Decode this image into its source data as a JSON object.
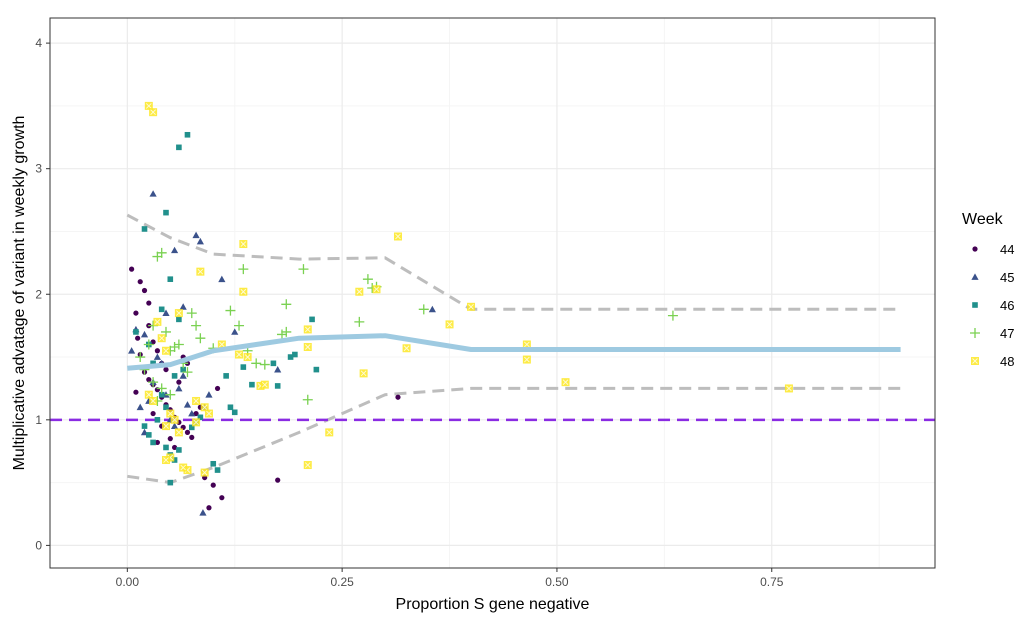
{
  "chart_data": {
    "type": "scatter",
    "title": "",
    "xlabel": "Proportion S gene negative",
    "ylabel": "Multiplicative advatage of variant in weekly growth",
    "xlim": [
      -0.09,
      0.94
    ],
    "ylim": [
      -0.18,
      4.2
    ],
    "x_ticks": [
      0.0,
      0.25,
      0.5,
      0.75
    ],
    "x_tick_labels": [
      "0.00",
      "0.25",
      "0.50",
      "0.75"
    ],
    "y_ticks": [
      0,
      1,
      2,
      3,
      4
    ],
    "y_tick_labels": [
      "0",
      "1",
      "2",
      "3",
      "4"
    ],
    "grid": true,
    "legend": {
      "title": "Week",
      "position": "right"
    },
    "reference_line": {
      "y": 1,
      "color": "#8a2be2",
      "style": "dashed"
    },
    "fit_line": {
      "color": "#9ecae1",
      "x": [
        0.0,
        0.05,
        0.1,
        0.2,
        0.3,
        0.4,
        0.5,
        0.6,
        0.7,
        0.8,
        0.9
      ],
      "y": [
        1.41,
        1.44,
        1.55,
        1.65,
        1.67,
        1.56,
        1.56,
        1.56,
        1.56,
        1.56,
        1.56
      ]
    },
    "upper_band": {
      "color": "#bdbdbd",
      "x": [
        0.0,
        0.05,
        0.1,
        0.2,
        0.3,
        0.4,
        0.5,
        0.6,
        0.7,
        0.8,
        0.9
      ],
      "y": [
        2.63,
        2.45,
        2.32,
        2.28,
        2.29,
        1.88,
        1.88,
        1.88,
        1.88,
        1.88,
        1.88
      ]
    },
    "lower_band": {
      "color": "#bdbdbd",
      "x": [
        0.0,
        0.05,
        0.1,
        0.2,
        0.3,
        0.4,
        0.5,
        0.6,
        0.7,
        0.8,
        0.9
      ],
      "y": [
        0.55,
        0.5,
        0.62,
        0.9,
        1.2,
        1.25,
        1.25,
        1.25,
        1.25,
        1.25,
        1.25
      ]
    },
    "series": [
      {
        "name": "44",
        "color": "#440154",
        "shape": "circle",
        "points": [
          [
            0.005,
            2.2
          ],
          [
            0.015,
            2.1
          ],
          [
            0.02,
            2.03
          ],
          [
            0.025,
            1.93
          ],
          [
            0.01,
            1.85
          ],
          [
            0.03,
            1.62
          ],
          [
            0.035,
            1.55
          ],
          [
            0.015,
            1.52
          ],
          [
            0.04,
            1.45
          ],
          [
            0.045,
            1.4
          ],
          [
            0.02,
            1.38
          ],
          [
            0.025,
            1.32
          ],
          [
            0.03,
            1.28
          ],
          [
            0.035,
            1.24
          ],
          [
            0.01,
            1.22
          ],
          [
            0.04,
            1.18
          ],
          [
            0.045,
            1.12
          ],
          [
            0.05,
            1.08
          ],
          [
            0.055,
            1.02
          ],
          [
            0.06,
            0.98
          ],
          [
            0.065,
            0.94
          ],
          [
            0.07,
            0.9
          ],
          [
            0.075,
            0.86
          ],
          [
            0.08,
            1.05
          ],
          [
            0.085,
            1.1
          ],
          [
            0.06,
            1.3
          ],
          [
            0.065,
            1.5
          ],
          [
            0.07,
            1.45
          ],
          [
            0.03,
            1.05
          ],
          [
            0.04,
            0.95
          ],
          [
            0.05,
            0.85
          ],
          [
            0.035,
            0.82
          ],
          [
            0.055,
            0.78
          ],
          [
            0.09,
            0.54
          ],
          [
            0.1,
            0.48
          ],
          [
            0.11,
            0.38
          ],
          [
            0.095,
            0.3
          ],
          [
            0.105,
            1.25
          ],
          [
            0.175,
            0.52
          ],
          [
            0.315,
            1.18
          ],
          [
            0.025,
            1.75
          ],
          [
            0.012,
            1.65
          ]
        ]
      },
      {
        "name": "45",
        "color": "#3b528b",
        "shape": "triangle",
        "points": [
          [
            0.03,
            2.8
          ],
          [
            0.08,
            2.47
          ],
          [
            0.085,
            2.42
          ],
          [
            0.055,
            2.35
          ],
          [
            0.065,
            1.9
          ],
          [
            0.01,
            1.72
          ],
          [
            0.02,
            1.68
          ],
          [
            0.005,
            1.55
          ],
          [
            0.035,
            1.5
          ],
          [
            0.04,
            1.45
          ],
          [
            0.045,
            1.2
          ],
          [
            0.025,
            1.15
          ],
          [
            0.015,
            1.1
          ],
          [
            0.05,
            1.0
          ],
          [
            0.055,
            0.95
          ],
          [
            0.02,
            0.9
          ],
          [
            0.03,
            1.3
          ],
          [
            0.06,
            1.25
          ],
          [
            0.065,
            1.35
          ],
          [
            0.07,
            1.12
          ],
          [
            0.075,
            1.05
          ],
          [
            0.09,
            1.1
          ],
          [
            0.095,
            1.2
          ],
          [
            0.11,
            2.12
          ],
          [
            0.125,
            1.7
          ],
          [
            0.175,
            1.4
          ],
          [
            0.355,
            1.88
          ],
          [
            0.088,
            0.26
          ],
          [
            0.045,
            1.85
          ]
        ]
      },
      {
        "name": "46",
        "color": "#21908c",
        "shape": "square",
        "points": [
          [
            0.07,
            3.27
          ],
          [
            0.06,
            3.17
          ],
          [
            0.045,
            2.65
          ],
          [
            0.02,
            2.52
          ],
          [
            0.05,
            2.12
          ],
          [
            0.04,
            1.88
          ],
          [
            0.06,
            1.8
          ],
          [
            0.01,
            1.7
          ],
          [
            0.025,
            1.6
          ],
          [
            0.03,
            1.45
          ],
          [
            0.055,
            1.35
          ],
          [
            0.065,
            1.4
          ],
          [
            0.04,
            1.2
          ],
          [
            0.045,
            1.1
          ],
          [
            0.035,
            1.0
          ],
          [
            0.02,
            0.95
          ],
          [
            0.025,
            0.88
          ],
          [
            0.03,
            0.82
          ],
          [
            0.045,
            0.78
          ],
          [
            0.05,
            0.72
          ],
          [
            0.055,
            0.68
          ],
          [
            0.06,
            0.76
          ],
          [
            0.075,
            0.94
          ],
          [
            0.08,
            0.98
          ],
          [
            0.085,
            1.02
          ],
          [
            0.1,
            0.65
          ],
          [
            0.105,
            0.6
          ],
          [
            0.115,
            1.35
          ],
          [
            0.12,
            1.1
          ],
          [
            0.125,
            1.06
          ],
          [
            0.135,
            1.42
          ],
          [
            0.145,
            1.28
          ],
          [
            0.175,
            1.27
          ],
          [
            0.19,
            1.5
          ],
          [
            0.195,
            1.52
          ],
          [
            0.22,
            1.4
          ],
          [
            0.215,
            1.8
          ],
          [
            0.17,
            1.45
          ],
          [
            0.05,
            0.5
          ]
        ]
      },
      {
        "name": "47",
        "color": "#7ad151",
        "shape": "plus",
        "points": [
          [
            0.04,
            2.33
          ],
          [
            0.035,
            2.3
          ],
          [
            0.015,
            1.5
          ],
          [
            0.025,
            1.6
          ],
          [
            0.03,
            1.75
          ],
          [
            0.045,
            1.7
          ],
          [
            0.05,
            1.55
          ],
          [
            0.055,
            1.58
          ],
          [
            0.06,
            1.6
          ],
          [
            0.065,
            1.45
          ],
          [
            0.07,
            1.38
          ],
          [
            0.075,
            1.85
          ],
          [
            0.08,
            1.75
          ],
          [
            0.085,
            1.65
          ],
          [
            0.02,
            1.4
          ],
          [
            0.03,
            1.3
          ],
          [
            0.04,
            1.25
          ],
          [
            0.05,
            1.2
          ],
          [
            0.035,
            1.15
          ],
          [
            0.1,
            1.57
          ],
          [
            0.12,
            1.87
          ],
          [
            0.13,
            1.75
          ],
          [
            0.135,
            2.2
          ],
          [
            0.14,
            1.55
          ],
          [
            0.15,
            1.45
          ],
          [
            0.16,
            1.44
          ],
          [
            0.18,
            1.68
          ],
          [
            0.185,
            1.92
          ],
          [
            0.205,
            2.2
          ],
          [
            0.21,
            1.16
          ],
          [
            0.27,
            1.78
          ],
          [
            0.28,
            2.12
          ],
          [
            0.285,
            2.05
          ],
          [
            0.29,
            2.06
          ],
          [
            0.345,
            1.88
          ],
          [
            0.635,
            1.83
          ],
          [
            0.185,
            1.7
          ]
        ]
      },
      {
        "name": "48",
        "color": "#fde725",
        "shape": "square-x",
        "points": [
          [
            0.025,
            3.5
          ],
          [
            0.03,
            3.45
          ],
          [
            0.085,
            2.18
          ],
          [
            0.135,
            2.4
          ],
          [
            0.315,
            2.46
          ],
          [
            0.135,
            2.02
          ],
          [
            0.06,
            1.85
          ],
          [
            0.035,
            1.78
          ],
          [
            0.04,
            1.65
          ],
          [
            0.045,
            1.55
          ],
          [
            0.025,
            1.2
          ],
          [
            0.03,
            1.15
          ],
          [
            0.05,
            1.05
          ],
          [
            0.055,
            1.0
          ],
          [
            0.045,
            0.95
          ],
          [
            0.09,
            1.1
          ],
          [
            0.095,
            1.05
          ],
          [
            0.08,
            0.98
          ],
          [
            0.06,
            0.9
          ],
          [
            0.05,
            0.7
          ],
          [
            0.045,
            0.68
          ],
          [
            0.07,
            0.6
          ],
          [
            0.09,
            0.58
          ],
          [
            0.065,
            0.62
          ],
          [
            0.11,
            1.6
          ],
          [
            0.13,
            1.52
          ],
          [
            0.14,
            1.5
          ],
          [
            0.155,
            1.27
          ],
          [
            0.16,
            1.28
          ],
          [
            0.21,
            1.72
          ],
          [
            0.21,
            1.58
          ],
          [
            0.21,
            0.64
          ],
          [
            0.235,
            0.9
          ],
          [
            0.275,
            1.37
          ],
          [
            0.27,
            2.02
          ],
          [
            0.29,
            2.04
          ],
          [
            0.325,
            1.57
          ],
          [
            0.375,
            1.76
          ],
          [
            0.4,
            1.9
          ],
          [
            0.465,
            1.6
          ],
          [
            0.465,
            1.48
          ],
          [
            0.51,
            1.3
          ],
          [
            0.77,
            1.25
          ],
          [
            0.08,
            1.15
          ]
        ]
      }
    ]
  },
  "colors": {
    "grid_major": "#ebebeb",
    "grid_minor": "#f5f5f5",
    "panel_border": "#333333",
    "point_outline": "#666666"
  }
}
